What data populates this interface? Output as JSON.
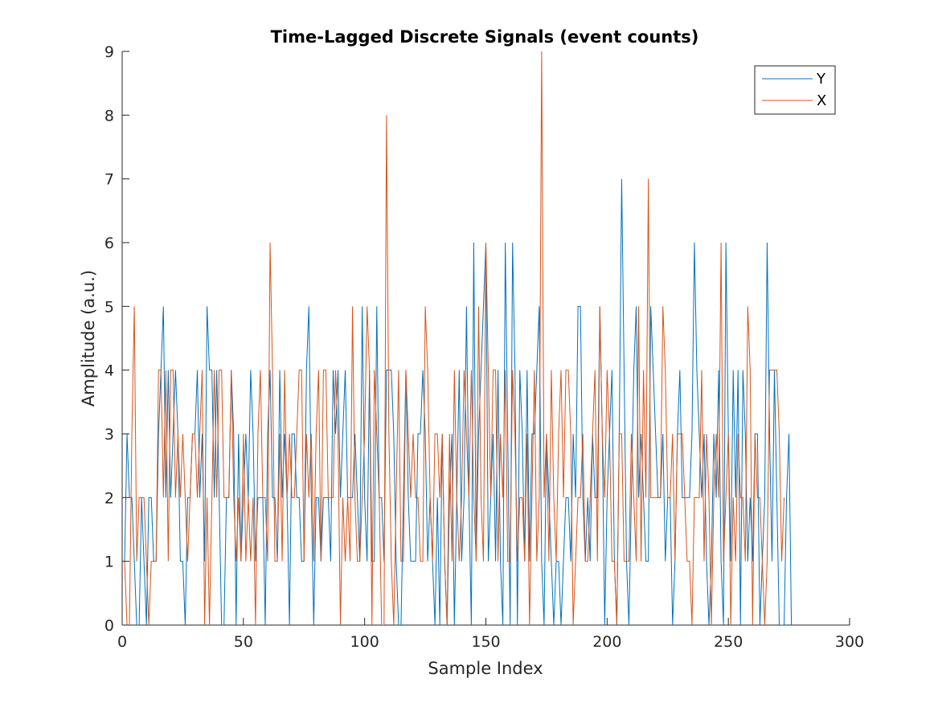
{
  "chart_data": {
    "type": "line",
    "title": "Time-Lagged Discrete Signals (event counts)",
    "xlabel": "Sample Index",
    "ylabel": "Amplitude (a.u.)",
    "xlim": [
      0,
      300
    ],
    "ylim": [
      0,
      9
    ],
    "xticks": [
      0,
      50,
      100,
      150,
      200,
      250,
      300
    ],
    "yticks": [
      0,
      1,
      2,
      3,
      4,
      5,
      6,
      7,
      8,
      9
    ],
    "grid": false,
    "legend_position": "top-right",
    "series": [
      {
        "name": "Y",
        "color": "#0072BD",
        "x_start": 1,
        "values": [
          1,
          3,
          2,
          2,
          1,
          0,
          0,
          2,
          1,
          0,
          2,
          2,
          1,
          1,
          3,
          4,
          5,
          2,
          4,
          2,
          3,
          4,
          3,
          1,
          1,
          0,
          2,
          2,
          3,
          3,
          4,
          2,
          3,
          1,
          5,
          4,
          4,
          2,
          4,
          2,
          0,
          0,
          2,
          2,
          4,
          3,
          0,
          3,
          1,
          2,
          3,
          2,
          4,
          3,
          1,
          2,
          2,
          2,
          0,
          3,
          4,
          2,
          2,
          1,
          4,
          2,
          3,
          2,
          0,
          3,
          3,
          2,
          2,
          1,
          1,
          4,
          5,
          2,
          0,
          2,
          2,
          1,
          2,
          2,
          2,
          1,
          4,
          3,
          4,
          2,
          3,
          4,
          2,
          2,
          2,
          3,
          2,
          1,
          5,
          2,
          1,
          4,
          1,
          1,
          5,
          2,
          2,
          1,
          4,
          4,
          4,
          3,
          1,
          0,
          0,
          2,
          4,
          2,
          1,
          1,
          1,
          3,
          3,
          4,
          3,
          1,
          2,
          1,
          0,
          2,
          0,
          3,
          1,
          0,
          2,
          3,
          0,
          2,
          4,
          1,
          2,
          5,
          2,
          0,
          6,
          1,
          3,
          4,
          5,
          6,
          1,
          2,
          3,
          1,
          4,
          1,
          0,
          6,
          3,
          0,
          6,
          4,
          0,
          4,
          3,
          1,
          4,
          1,
          3,
          3,
          4,
          5,
          1,
          0,
          3,
          2,
          1,
          0,
          1,
          1,
          0,
          1,
          2,
          2,
          1,
          3,
          2,
          5,
          5,
          2,
          1,
          2,
          1,
          3,
          2,
          2,
          5,
          3,
          0,
          2,
          3,
          4,
          1,
          0,
          3,
          7,
          4,
          1,
          0,
          2,
          4,
          5,
          2,
          3,
          2,
          1,
          1,
          5,
          4,
          3,
          2,
          2,
          3,
          1,
          2,
          2,
          0,
          1,
          3,
          4,
          2,
          2,
          2,
          2,
          3,
          6,
          4,
          3,
          2,
          3,
          1,
          0,
          1,
          3,
          2,
          4,
          1,
          0,
          6,
          3,
          1,
          4,
          2,
          4,
          0,
          4,
          3,
          1,
          2,
          1,
          3,
          3,
          0,
          1,
          2,
          6,
          3,
          1,
          4,
          2,
          0,
          0,
          0,
          2,
          3,
          0
        ]
      },
      {
        "name": "X",
        "color": "#D95319",
        "x_start": 1,
        "values": [
          1,
          0,
          0,
          3,
          5,
          1,
          2,
          2,
          2,
          1,
          0,
          1,
          1,
          1,
          4,
          4,
          2,
          4,
          1,
          4,
          4,
          2,
          3,
          2,
          3,
          2,
          1,
          2,
          3,
          3,
          2,
          3,
          4,
          0,
          2,
          0,
          2,
          4,
          2,
          4,
          4,
          2,
          2,
          2,
          4,
          2,
          1,
          2,
          1,
          3,
          1,
          2,
          1,
          2,
          0,
          3,
          4,
          2,
          2,
          1,
          6,
          4,
          1,
          1,
          3,
          1,
          4,
          2,
          3,
          2,
          2,
          3,
          4,
          4,
          1,
          3,
          2,
          3,
          1,
          3,
          4,
          1,
          4,
          4,
          2,
          2,
          2,
          4,
          3,
          0,
          2,
          1,
          2,
          1,
          5,
          2,
          1,
          1,
          2,
          3,
          5,
          4,
          0,
          4,
          3,
          2,
          0,
          0,
          8,
          3,
          1,
          0,
          2,
          4,
          1,
          1,
          4,
          3,
          2,
          3,
          2,
          2,
          1,
          1,
          5,
          4,
          2,
          1,
          3,
          3,
          2,
          3,
          1,
          0,
          3,
          1,
          4,
          2,
          1,
          2,
          4,
          3,
          2,
          4,
          2,
          1,
          5,
          2,
          1,
          6,
          4,
          2,
          4,
          4,
          1,
          3,
          2,
          4,
          1,
          1,
          4,
          3,
          1,
          2,
          2,
          1,
          3,
          0,
          2,
          4,
          1,
          2,
          9,
          2,
          3,
          1,
          4,
          2,
          1,
          3,
          4,
          2,
          4,
          4,
          3,
          0,
          1,
          2,
          2,
          3,
          1,
          1,
          2,
          3,
          4,
          1,
          5,
          3,
          2,
          4,
          3,
          1,
          1,
          0,
          3,
          3,
          1,
          1,
          1,
          3,
          2,
          1,
          5,
          1,
          4,
          2,
          7,
          2,
          2,
          2,
          2,
          2,
          5,
          4,
          2,
          2,
          3,
          1,
          3,
          3,
          3,
          2,
          1,
          1,
          0,
          2,
          2,
          2,
          4,
          1,
          3,
          2,
          0,
          2,
          3,
          2,
          6,
          1,
          2,
          3,
          0,
          2,
          1,
          3,
          2,
          2,
          1,
          5,
          4,
          0,
          3,
          2,
          2,
          1,
          0,
          1,
          4,
          4,
          4,
          4,
          3,
          1,
          2
        ]
      }
    ]
  }
}
